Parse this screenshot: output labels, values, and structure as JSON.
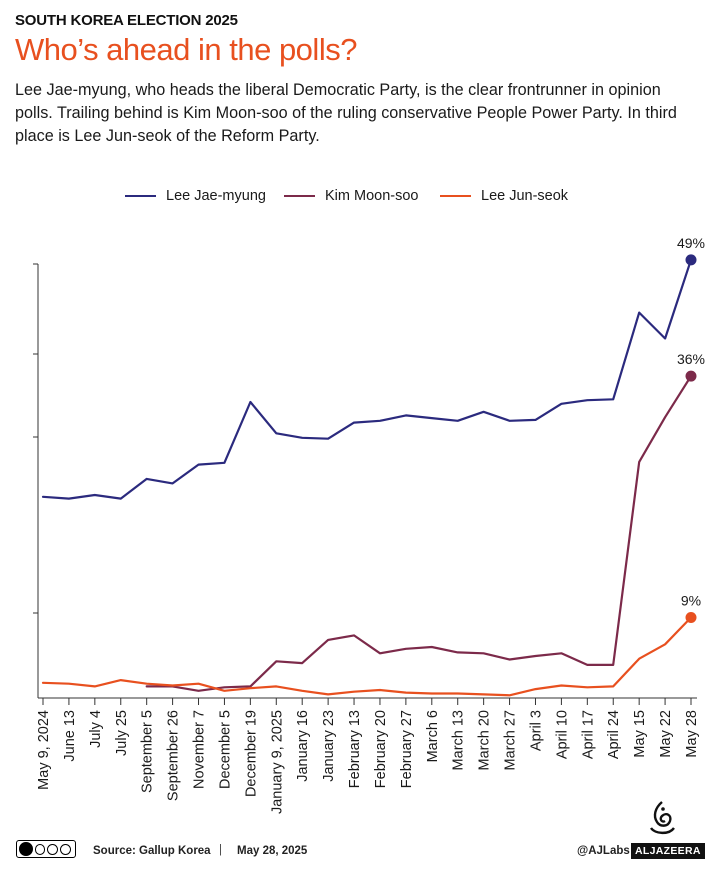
{
  "header": {
    "kicker": "SOUTH KOREA ELECTION 2025",
    "headline": "Who’s ahead in the polls?",
    "dek": "Lee Jae-myung, who heads the liberal Democratic Party, is the clear frontrunner in opinion polls. Trailing behind is Kim Moon-soo of the ruling conservative People Power Party. In third place is Lee Jun-seok of the Reform Party."
  },
  "colors": {
    "lee_jae_myung": "#2b2a7e",
    "kim_moon_soo": "#7c2a4a",
    "lee_jun_seok": "#e8501f",
    "headline": "#e8501f",
    "axis": "#333333"
  },
  "chart_data": {
    "type": "line",
    "legend_position": "top-center",
    "grid": false,
    "ylim": [
      0,
      52
    ],
    "x": [
      "May 9, 2024",
      "June 13",
      "July 4",
      "July 25",
      "September 5",
      "September 26",
      "November 7",
      "December 5",
      "December 19",
      "January 9, 2025",
      "January  16",
      "January  23",
      "February 13",
      "February 20",
      "February 27",
      "March 6",
      "March 13",
      "March 20",
      "March 27",
      "April 3",
      "April 10",
      "April 17",
      "April 24",
      "May 15",
      "May 22",
      "May 28"
    ],
    "series": [
      {
        "name": "Lee Jae-myung",
        "color": "#2b2a7e",
        "values": [
          22.5,
          22.3,
          22.7,
          22.3,
          24.5,
          24.0,
          26.1,
          26.3,
          33.1,
          29.6,
          29.1,
          29.0,
          30.8,
          31.0,
          31.6,
          31.3,
          31.0,
          32.0,
          31.0,
          31.1,
          32.9,
          33.3,
          33.4,
          43.1,
          40.2,
          49.0
        ],
        "end_label": "49%"
      },
      {
        "name": "Kim Moon-soo",
        "color": "#7c2a4a",
        "values": [
          null,
          null,
          null,
          null,
          1.3,
          1.3,
          0.8,
          1.2,
          1.3,
          4.1,
          3.9,
          6.5,
          7.0,
          5.0,
          5.5,
          5.7,
          5.1,
          5.0,
          4.3,
          4.7,
          5.0,
          3.7,
          3.7,
          26.4,
          31.4,
          36.0
        ],
        "end_label": "36%"
      },
      {
        "name": "Lee Jun-seok",
        "color": "#e8501f",
        "values": [
          1.7,
          1.6,
          1.3,
          2.0,
          1.6,
          1.4,
          1.6,
          0.8,
          1.1,
          1.3,
          0.8,
          0.4,
          0.7,
          0.9,
          0.6,
          0.5,
          0.5,
          0.4,
          0.3,
          1.0,
          1.4,
          1.2,
          1.3,
          4.4,
          6.0,
          9.0
        ],
        "end_label": "9%"
      }
    ]
  },
  "footer": {
    "source": "Source:  Gallup Korea",
    "separator": "|",
    "date": "May 28, 2025",
    "handle": "@AJLabs",
    "brand": "ALJAZEERA",
    "license_icon": "cc-by-nc-sa-icon"
  }
}
